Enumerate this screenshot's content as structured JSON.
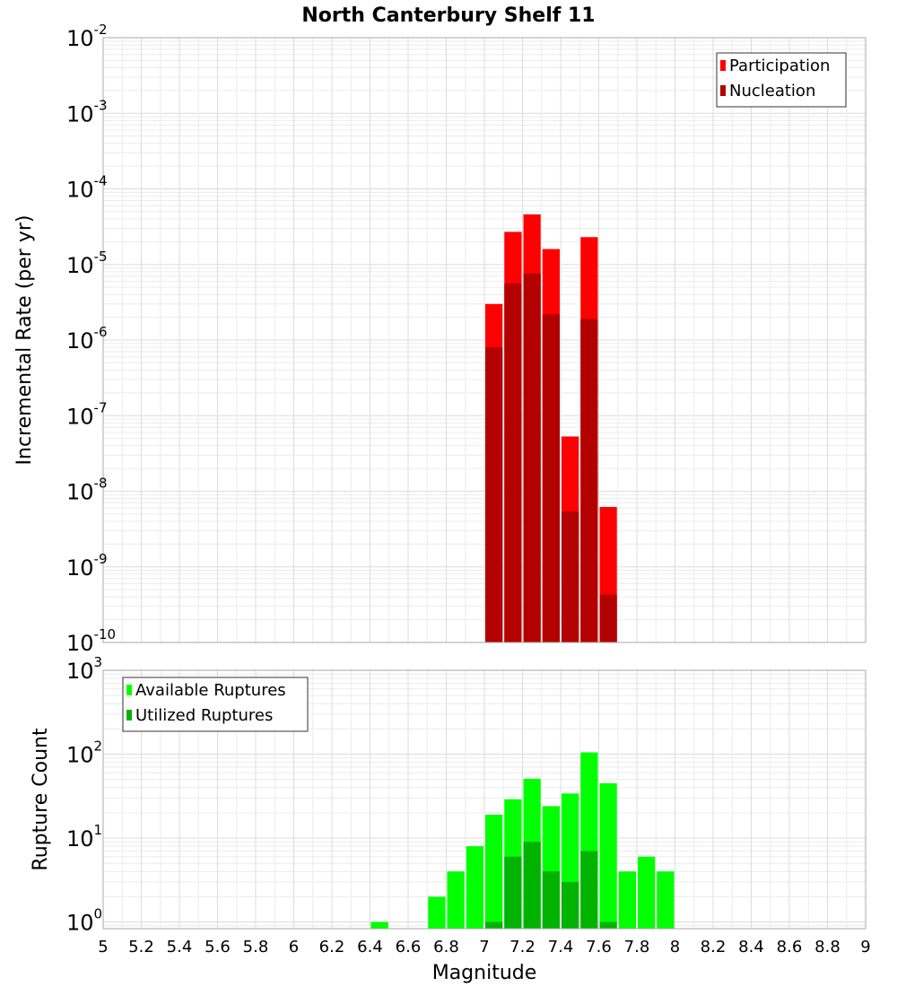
{
  "chart_data": {
    "title": "North Canterbury Shelf 11",
    "x_ticks": [
      "5",
      "5.2",
      "5.4",
      "5.6",
      "5.8",
      "6",
      "6.2",
      "6.4",
      "6.6",
      "6.8",
      "7",
      "7.2",
      "7.4",
      "7.6",
      "7.8",
      "8",
      "8.2",
      "8.4",
      "8.6",
      "8.8",
      "9"
    ],
    "xlabel": "Magnitude",
    "xlim": [
      5,
      9
    ],
    "bin_width": 0.1,
    "panels": [
      {
        "type": "bar",
        "ylabel": "Incremental Rate (per yr)",
        "yscale": "log",
        "ylim_exp": [
          -10,
          -2
        ],
        "y_ticks": [
          {
            "base": "10",
            "exp": "-2"
          },
          {
            "base": "10",
            "exp": "-3"
          },
          {
            "base": "10",
            "exp": "-4"
          },
          {
            "base": "10",
            "exp": "-5"
          },
          {
            "base": "10",
            "exp": "-6"
          },
          {
            "base": "10",
            "exp": "-7"
          },
          {
            "base": "10",
            "exp": "-8"
          },
          {
            "base": "10",
            "exp": "-9"
          },
          {
            "base": "10",
            "exp": "-10"
          }
        ],
        "legend_position": "top-right",
        "series": [
          {
            "name": "Participation",
            "color": "#ff0000",
            "x": [
              7.05,
              7.15,
              7.25,
              7.35,
              7.45,
              7.55,
              7.65
            ],
            "values": [
              3e-06,
              2.7e-05,
              4.6e-05,
              1.6e-05,
              5.3e-08,
              2.3e-05,
              6.2e-09
            ]
          },
          {
            "name": "Nucleation",
            "color": "#b30000",
            "x": [
              7.05,
              7.15,
              7.25,
              7.35,
              7.45,
              7.55,
              7.65
            ],
            "values": [
              8e-07,
              5.6e-06,
              7.6e-06,
              2.2e-06,
              5.4e-09,
              1.9e-06,
              4.3e-10
            ]
          }
        ]
      },
      {
        "type": "bar",
        "ylabel": "Rupture Count",
        "yscale": "log",
        "ylim_exp": [
          -0.08,
          3
        ],
        "y_ticks": [
          {
            "base": "10",
            "exp": "3"
          },
          {
            "base": "10",
            "exp": "2"
          },
          {
            "base": "10",
            "exp": "1"
          },
          {
            "base": "10",
            "exp": "0"
          }
        ],
        "legend_position": "top-left",
        "series": [
          {
            "name": "Available Ruptures",
            "color": "#00ff00",
            "x": [
              6.45,
              6.75,
              6.85,
              6.95,
              7.05,
              7.15,
              7.25,
              7.35,
              7.45,
              7.55,
              7.65,
              7.75,
              7.85,
              7.95
            ],
            "values": [
              1,
              2,
              4,
              8,
              19,
              29,
              51,
              24,
              34,
              105,
              45,
              4,
              6,
              4
            ]
          },
          {
            "name": "Utilized Ruptures",
            "color": "#00b300",
            "x": [
              7.05,
              7.15,
              7.25,
              7.35,
              7.45,
              7.55,
              7.65
            ],
            "values": [
              1,
              6,
              9,
              4,
              3,
              7,
              1
            ]
          }
        ]
      }
    ]
  }
}
